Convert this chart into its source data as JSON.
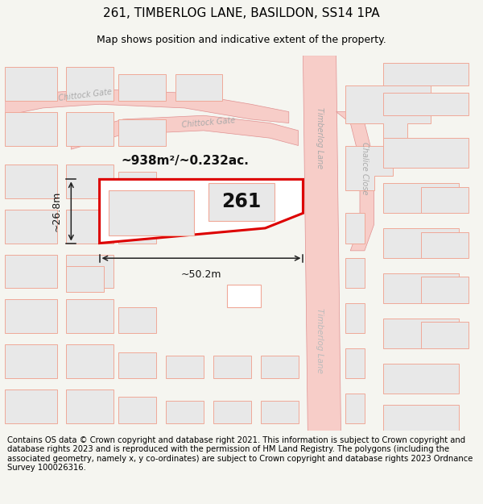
{
  "title": "261, TIMBERLOG LANE, BASILDON, SS14 1PA",
  "subtitle": "Map shows position and indicative extent of the property.",
  "footer": "Contains OS data © Crown copyright and database right 2021. This information is subject to Crown copyright and database rights 2023 and is reproduced with the permission of HM Land Registry. The polygons (including the associated geometry, namely x, y co-ordinates) are subject to Crown copyright and database rights 2023 Ordnance Survey 100026316.",
  "bg_color": "#f5f5f0",
  "map_bg": "#ffffff",
  "road_color": "#f7cdc8",
  "road_outline": "#e09090",
  "highlight_color": "#dd0000",
  "building_fill": "#e8e8e8",
  "building_stroke": "#f0a898",
  "label_color": "#aaaaaa",
  "plot_label": "261",
  "area_label": "~938m²/~0.232ac.",
  "dim_width": "~50.2m",
  "dim_height": "~26.8m",
  "title_fontsize": 11,
  "subtitle_fontsize": 9,
  "footer_fontsize": 7.2
}
